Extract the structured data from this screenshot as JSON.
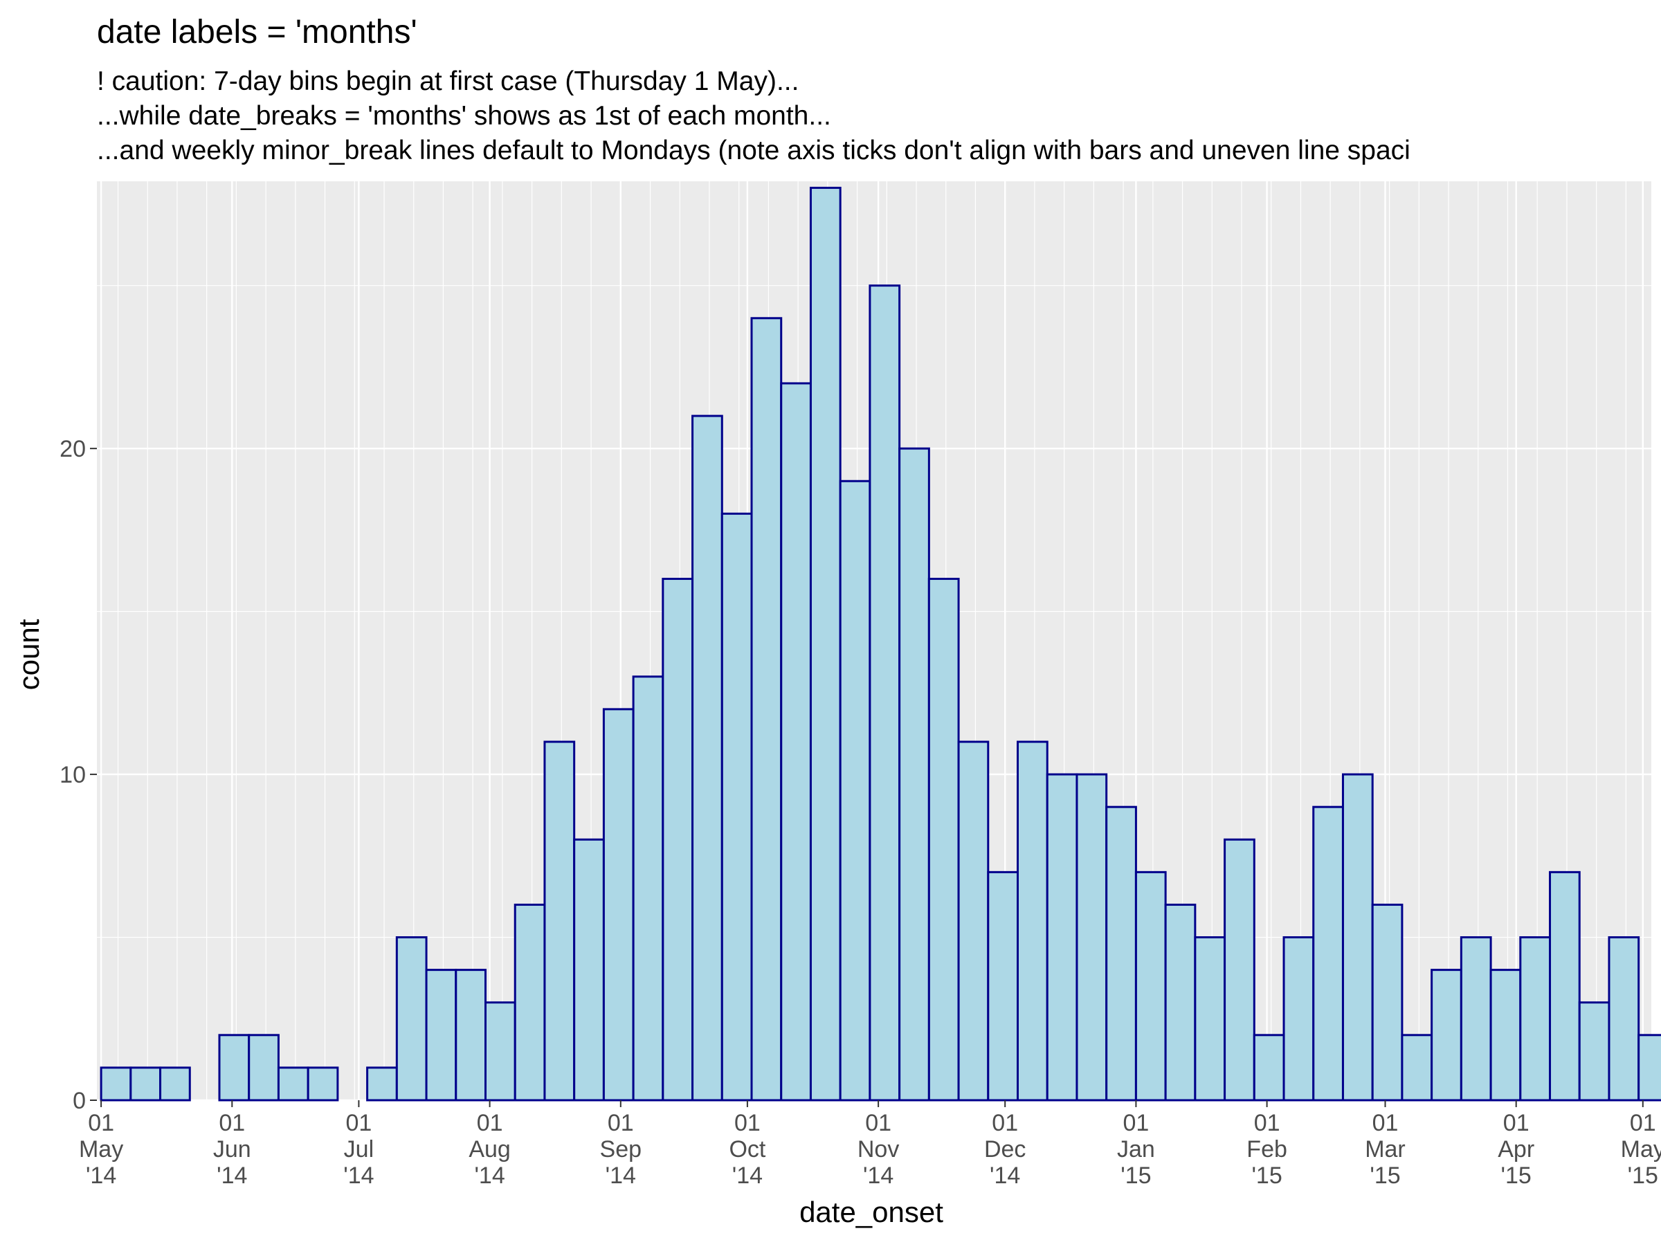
{
  "chart_data": {
    "type": "bar",
    "title": "date labels = 'months'",
    "subtitle": [
      "! caution: 7-day bins begin at first case (Thursday 1 May)...",
      "...while date_breaks = 'months' shows as 1st of each month...",
      "...and weekly minor_break lines default to Mondays (note axis ticks don't align with bars and uneven line spaci"
    ],
    "xlabel": "date_onset",
    "ylabel": "count",
    "xlim": [
      "2014-04-30",
      "2015-05-03"
    ],
    "ylim": [
      0,
      28.2
    ],
    "y_ticks": [
      0,
      10,
      20
    ],
    "y_minor_ticks": [
      5,
      15,
      25
    ],
    "grid": true,
    "legend": "none",
    "bin_width_days": 7,
    "first_bin_start": "2014-05-01",
    "x_ticks": [
      {
        "date": "2014-05-01",
        "day": "01",
        "month": "May",
        "year": "'14"
      },
      {
        "date": "2014-06-01",
        "day": "01",
        "month": "Jun",
        "year": "'14"
      },
      {
        "date": "2014-07-01",
        "day": "01",
        "month": "Jul",
        "year": "'14"
      },
      {
        "date": "2014-08-01",
        "day": "01",
        "month": "Aug",
        "year": "'14"
      },
      {
        "date": "2014-09-01",
        "day": "01",
        "month": "Sep",
        "year": "'14"
      },
      {
        "date": "2014-10-01",
        "day": "01",
        "month": "Oct",
        "year": "'14"
      },
      {
        "date": "2014-11-01",
        "day": "01",
        "month": "Nov",
        "year": "'14"
      },
      {
        "date": "2014-12-01",
        "day": "01",
        "month": "Dec",
        "year": "'14"
      },
      {
        "date": "2015-01-01",
        "day": "01",
        "month": "Jan",
        "year": "'15"
      },
      {
        "date": "2015-02-01",
        "day": "01",
        "month": "Feb",
        "year": "'15"
      },
      {
        "date": "2015-03-01",
        "day": "01",
        "month": "Mar",
        "year": "'15"
      },
      {
        "date": "2015-04-01",
        "day": "01",
        "month": "Apr",
        "year": "'15"
      },
      {
        "date": "2015-05-01",
        "day": "01",
        "month": "May",
        "year": "'15"
      }
    ],
    "values": [
      1,
      1,
      1,
      0,
      2,
      2,
      1,
      1,
      0,
      1,
      5,
      4,
      4,
      3,
      6,
      11,
      8,
      12,
      13,
      16,
      21,
      18,
      24,
      22,
      28,
      19,
      25,
      20,
      16,
      11,
      7,
      11,
      10,
      10,
      9,
      7,
      6,
      5,
      8,
      2,
      5,
      9,
      10,
      6,
      2,
      4,
      5,
      4,
      5,
      7,
      3,
      5,
      2
    ],
    "colors": {
      "bar_fill": "#add8e6",
      "bar_outline": "#00008b",
      "panel_background": "#ebebeb",
      "grid_line": "#ffffff"
    }
  }
}
